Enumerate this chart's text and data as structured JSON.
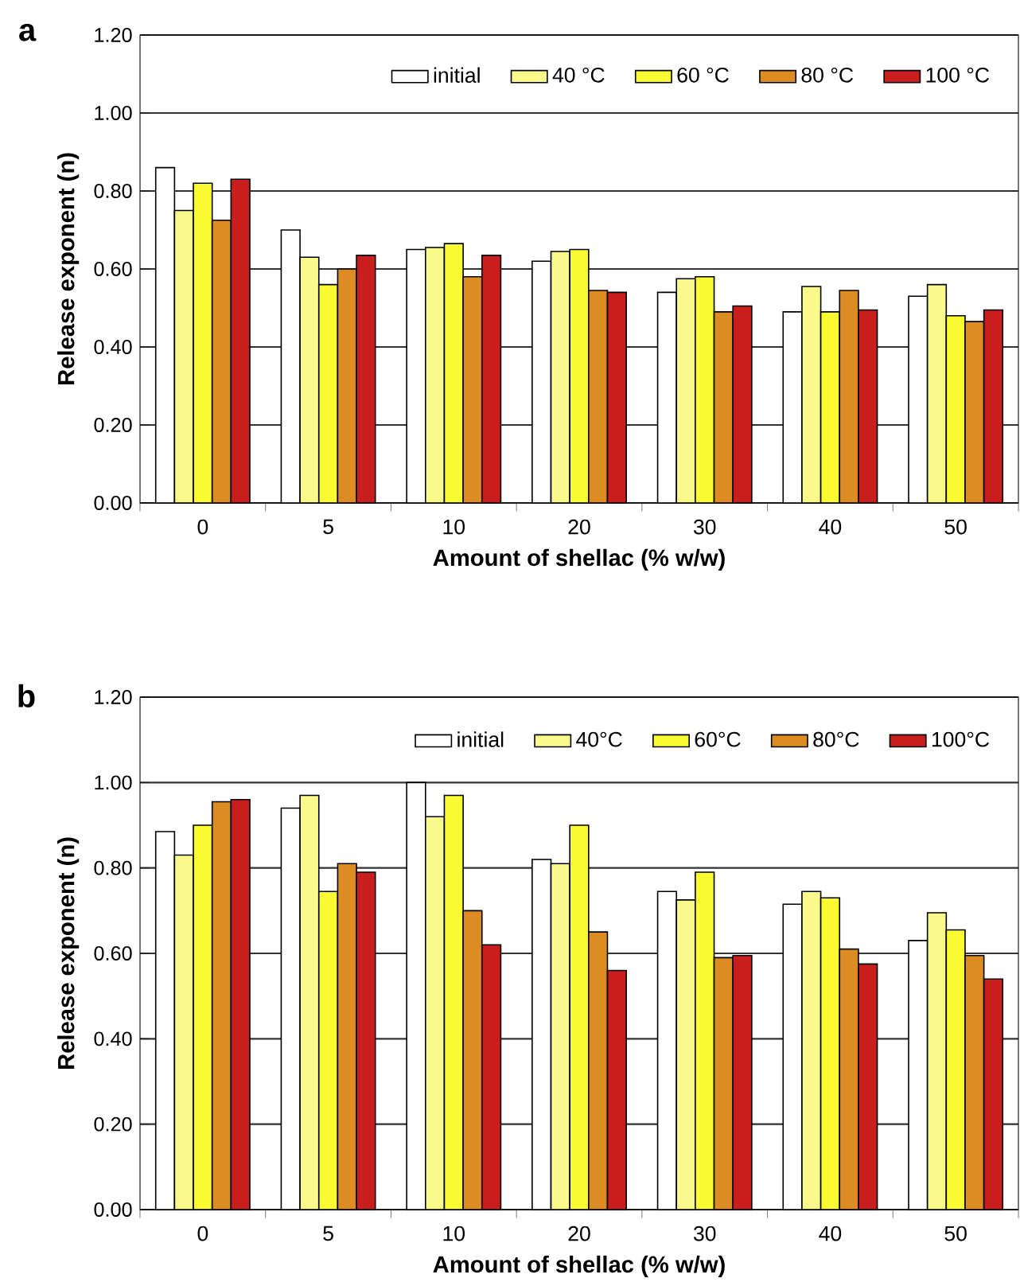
{
  "chart_data": [
    {
      "type": "bar",
      "annotations": [
        "a"
      ],
      "xlabel": "Amount of shellac (% w/w)",
      "ylabel": "Release exponent (n)",
      "categories": [
        "0",
        "5",
        "10",
        "20",
        "30",
        "40",
        "50"
      ],
      "ylim": [
        0,
        1.2
      ],
      "yticks": [
        {
          "value": 0,
          "label": "0.00"
        },
        {
          "value": 0.2,
          "label": "0.20"
        },
        {
          "value": 0.4,
          "label": "0.40"
        },
        {
          "value": 0.6,
          "label": "0.60"
        },
        {
          "value": 0.8,
          "label": "0.80"
        },
        {
          "value": 1.0,
          "label": "1.00"
        },
        {
          "value": 1.2,
          "label": "1.20"
        }
      ],
      "grid": "y",
      "legend": "top right",
      "series": [
        {
          "name": "initial",
          "color": "#ffffff",
          "values": [
            0.86,
            0.7,
            0.65,
            0.62,
            0.54,
            0.49,
            0.53
          ]
        },
        {
          "name": "40 °C",
          "color": "#fafa8c",
          "values": [
            0.75,
            0.63,
            0.655,
            0.645,
            0.575,
            0.555,
            0.56
          ]
        },
        {
          "name": "60 °C",
          "color": "#fafa32",
          "values": [
            0.82,
            0.56,
            0.665,
            0.65,
            0.58,
            0.49,
            0.48
          ]
        },
        {
          "name": "80 °C",
          "color": "#dc8c23",
          "values": [
            0.725,
            0.6,
            0.58,
            0.545,
            0.49,
            0.545,
            0.465
          ]
        },
        {
          "name": "100 °C",
          "color": "#c81e1e",
          "values": [
            0.83,
            0.635,
            0.635,
            0.54,
            0.505,
            0.495,
            0.495
          ]
        }
      ]
    },
    {
      "type": "bar",
      "annotations": [
        "b"
      ],
      "xlabel": "Amount of shellac (% w/w)",
      "ylabel": "Release exponent (n)",
      "categories": [
        "0",
        "5",
        "10",
        "20",
        "30",
        "40",
        "50"
      ],
      "ylim": [
        0,
        1.2
      ],
      "yticks": [
        {
          "value": 0,
          "label": "0.00"
        },
        {
          "value": 0.2,
          "label": "0.20"
        },
        {
          "value": 0.4,
          "label": "0.40"
        },
        {
          "value": 0.6,
          "label": "0.60"
        },
        {
          "value": 0.8,
          "label": "0.80"
        },
        {
          "value": 1.0,
          "label": "1.00"
        },
        {
          "value": 1.2,
          "label": "1.20"
        }
      ],
      "grid": "y",
      "legend": "top right",
      "series": [
        {
          "name": "initial",
          "color": "#ffffff",
          "values": [
            0.885,
            0.94,
            1.0,
            0.82,
            0.745,
            0.715,
            0.63
          ]
        },
        {
          "name": "40°C",
          "color": "#fafa8c",
          "values": [
            0.83,
            0.97,
            0.92,
            0.81,
            0.725,
            0.745,
            0.695
          ]
        },
        {
          "name": "60°C",
          "color": "#fafa32",
          "values": [
            0.9,
            0.745,
            0.97,
            0.9,
            0.79,
            0.73,
            0.655
          ]
        },
        {
          "name": "80°C",
          "color": "#dc8c23",
          "values": [
            0.955,
            0.81,
            0.7,
            0.65,
            0.59,
            0.61,
            0.595
          ]
        },
        {
          "name": "100°C",
          "color": "#c81e1e",
          "values": [
            0.96,
            0.79,
            0.62,
            0.56,
            0.595,
            0.575,
            0.54
          ]
        }
      ]
    }
  ]
}
